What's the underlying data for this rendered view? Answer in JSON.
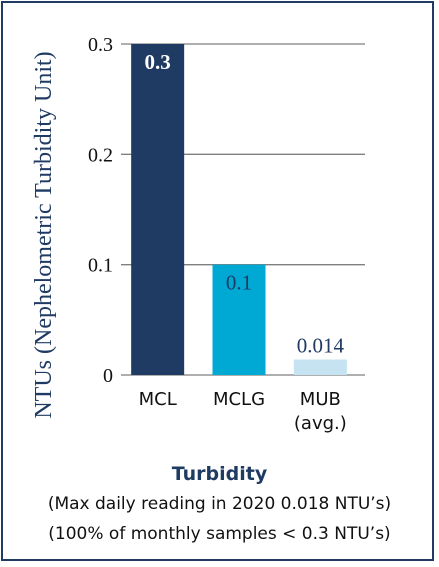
{
  "colors": {
    "frame": "#1f3b63",
    "axis_label": "#1f3b63",
    "gridline": "#7f7f7f",
    "text": "#111111"
  },
  "chart_data": {
    "type": "bar",
    "ylabel": "NTUs (Nephelometric Turbidity Unit)",
    "ylim": [
      0,
      0.3
    ],
    "yticks": [
      "0",
      "0.1",
      "0.2",
      "0.3"
    ],
    "grid": true,
    "categories": [
      {
        "lines": [
          "MCL"
        ]
      },
      {
        "lines": [
          "MCLG"
        ]
      },
      {
        "lines": [
          "MUB",
          "(avg.)"
        ]
      }
    ],
    "values": [
      0.3,
      0.1,
      0.014
    ],
    "value_labels": [
      "0.3",
      "0.1",
      "0.014"
    ],
    "bar_colors": [
      "#1f3b63",
      "#00a9d4",
      "#c5e3f1"
    ],
    "label_colors": [
      "#ffffff",
      "#1f3b63",
      "#1f3b63"
    ]
  },
  "caption": {
    "title": "Turbidity",
    "line1": "(Max daily reading in 2020 0.018 NTU’s)",
    "line2": "(100% of monthly samples < 0.3 NTU’s)"
  }
}
